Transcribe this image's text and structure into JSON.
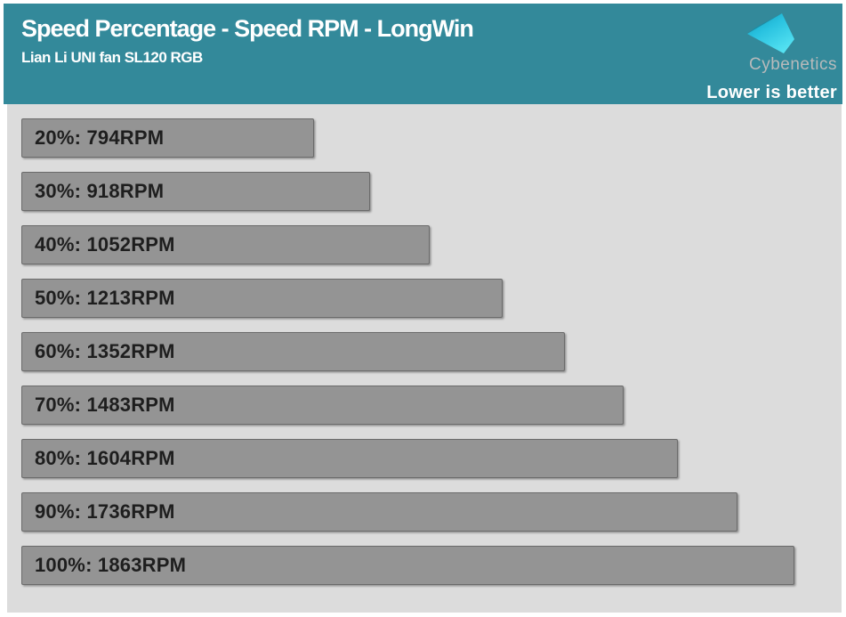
{
  "page": {
    "background": "#ffffff"
  },
  "header": {
    "title": "Speed Percentage - Speed RPM - LongWin",
    "subtitle": "Lian Li UNI fan SL120 RGB",
    "brand": "Cybenetics",
    "note": "Lower is better",
    "background_color": "#33899a",
    "logo_colors": {
      "dark": "#0f9ab8",
      "light": "#55e2f2"
    }
  },
  "chart_data": {
    "type": "bar",
    "orientation": "horizontal",
    "title": "Speed Percentage - Speed RPM - LongWin",
    "subtitle": "Lian Li UNI fan SL120 RGB",
    "annotation": "Lower is better",
    "categories": [
      "20%",
      "30%",
      "40%",
      "50%",
      "60%",
      "70%",
      "80%",
      "90%",
      "100%"
    ],
    "values": [
      794,
      918,
      1052,
      1213,
      1352,
      1483,
      1604,
      1736,
      1863
    ],
    "unit": "RPM",
    "labels": [
      "20%: 794RPM",
      "30%: 918RPM",
      "40%: 1052RPM",
      "50%: 1213RPM",
      "60%: 1352RPM",
      "70%: 1483RPM",
      "80%: 1604RPM",
      "90%: 1736RPM",
      "100%: 1863RPM"
    ],
    "xlabel": "",
    "ylabel": "",
    "xlim": [
      142,
      1863
    ],
    "grid": false,
    "legend": false,
    "bar_color": "#949494",
    "bar_border_color": "#6b6b6b",
    "plot_background": "#dcdcdc",
    "label_color": "#1e1e1e"
  }
}
